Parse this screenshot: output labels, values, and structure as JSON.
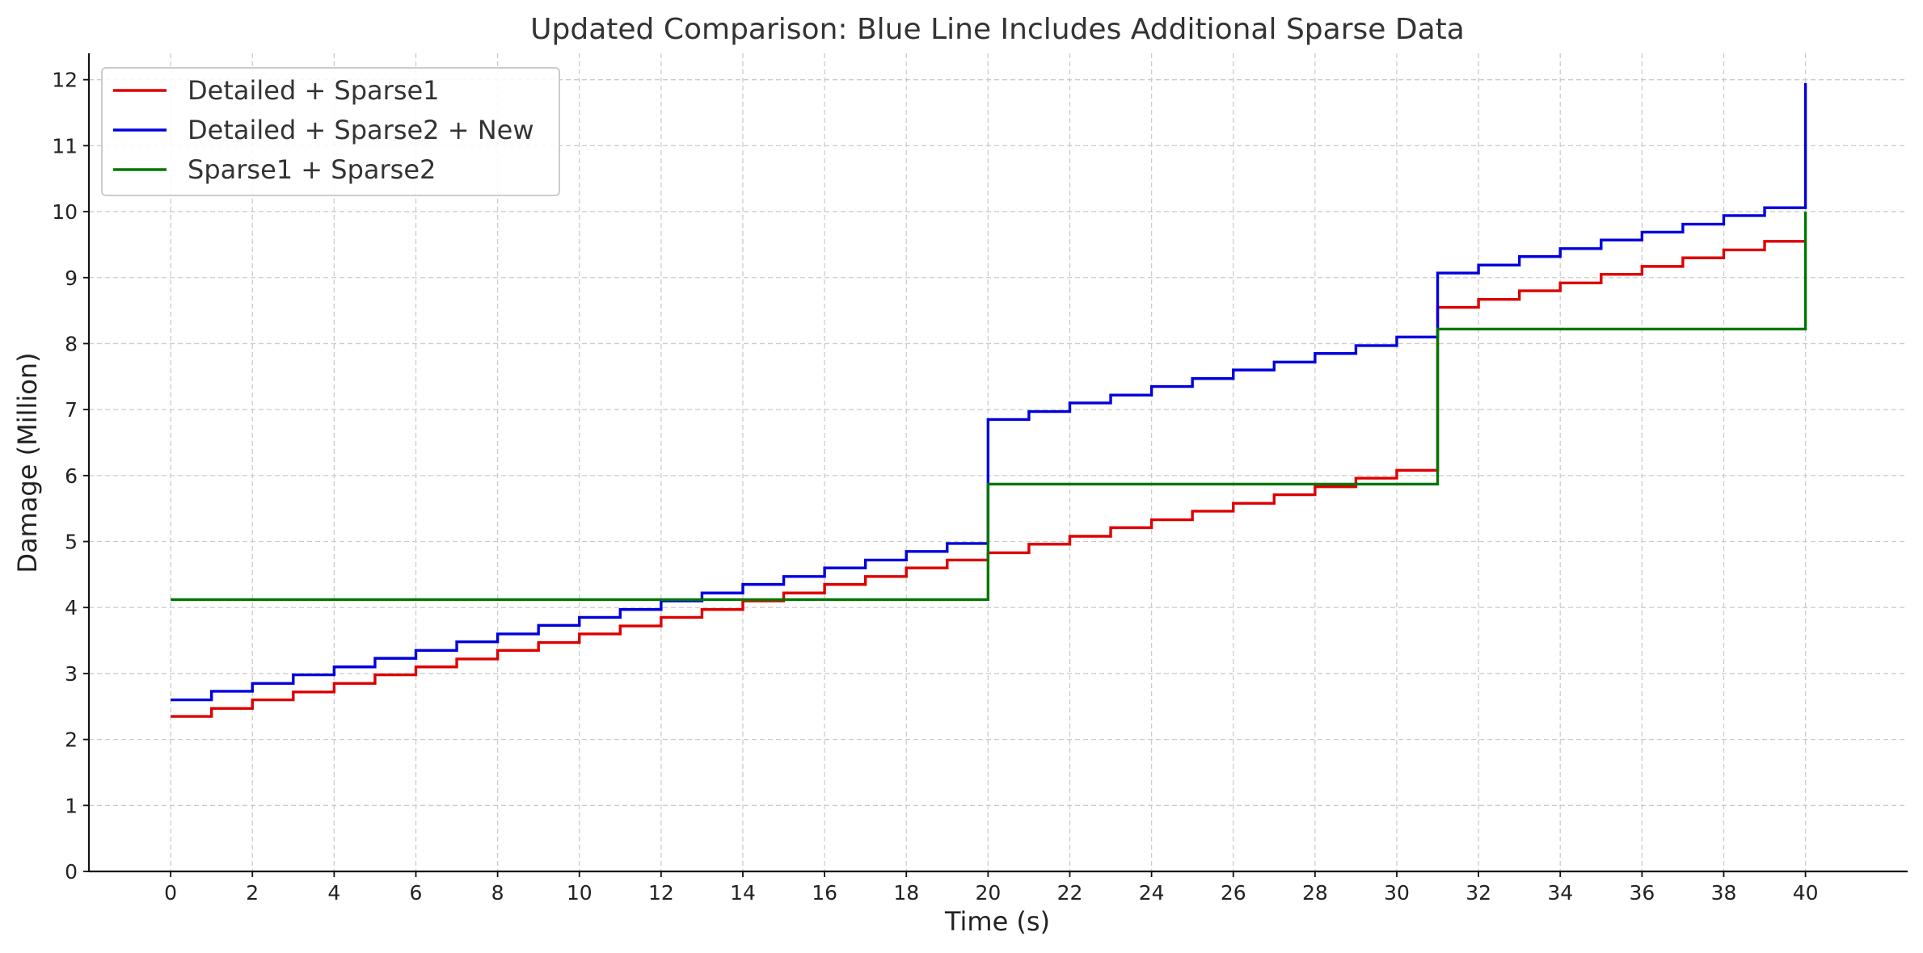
{
  "chart_data": {
    "type": "line",
    "step": "post",
    "title": "Updated Comparison: Blue Line Includes Additional Sparse Data",
    "xlabel": "Time (s)",
    "ylabel": "Damage (Million)",
    "xlim": [
      -2,
      42.5
    ],
    "ylim": [
      0,
      12.4
    ],
    "xticks": [
      0,
      2,
      4,
      6,
      8,
      10,
      12,
      14,
      16,
      18,
      20,
      22,
      24,
      26,
      28,
      30,
      32,
      34,
      36,
      38,
      40
    ],
    "yticks": [
      0,
      1,
      2,
      3,
      4,
      5,
      6,
      7,
      8,
      9,
      10,
      11,
      12
    ],
    "grid": true,
    "legend_position": "top-left",
    "series": [
      {
        "name": "Detailed + Sparse1",
        "color": "#dd0000",
        "x": [
          0,
          1,
          2,
          3,
          4,
          5,
          6,
          7,
          8,
          9,
          10,
          11,
          12,
          13,
          14,
          15,
          16,
          17,
          18,
          19,
          20,
          21,
          22,
          23,
          24,
          25,
          26,
          27,
          28,
          29,
          30,
          31,
          32,
          33,
          34,
          35,
          36,
          37,
          38,
          39,
          40
        ],
        "y": [
          2.35,
          2.47,
          2.6,
          2.72,
          2.85,
          2.98,
          3.1,
          3.22,
          3.35,
          3.47,
          3.6,
          3.72,
          3.85,
          3.97,
          4.1,
          4.22,
          4.35,
          4.47,
          4.6,
          4.72,
          4.83,
          4.96,
          5.08,
          5.21,
          5.33,
          5.46,
          5.58,
          5.71,
          5.83,
          5.96,
          6.08,
          8.55,
          8.67,
          8.8,
          8.92,
          9.05,
          9.17,
          9.3,
          9.42,
          9.55,
          9.55
        ]
      },
      {
        "name": "Detailed + Sparse2 + New",
        "color": "#0000dd",
        "x": [
          0,
          1,
          2,
          3,
          4,
          5,
          6,
          7,
          8,
          9,
          10,
          11,
          12,
          13,
          14,
          15,
          16,
          17,
          18,
          19,
          20,
          21,
          22,
          23,
          24,
          25,
          26,
          27,
          28,
          29,
          30,
          31,
          32,
          33,
          34,
          35,
          36,
          37,
          38,
          39,
          40
        ],
        "y": [
          2.6,
          2.73,
          2.85,
          2.98,
          3.1,
          3.23,
          3.35,
          3.48,
          3.6,
          3.73,
          3.85,
          3.97,
          4.1,
          4.22,
          4.35,
          4.47,
          4.6,
          4.72,
          4.85,
          4.97,
          6.85,
          6.97,
          7.1,
          7.22,
          7.35,
          7.47,
          7.6,
          7.72,
          7.85,
          7.97,
          8.1,
          9.07,
          9.19,
          9.32,
          9.44,
          9.57,
          9.69,
          9.81,
          9.94,
          10.06,
          11.95
        ]
      },
      {
        "name": "Sparse1 + Sparse2",
        "color": "#007700",
        "x": [
          0,
          20,
          31,
          40
        ],
        "y": [
          4.12,
          5.87,
          8.22,
          10.0
        ]
      }
    ]
  }
}
